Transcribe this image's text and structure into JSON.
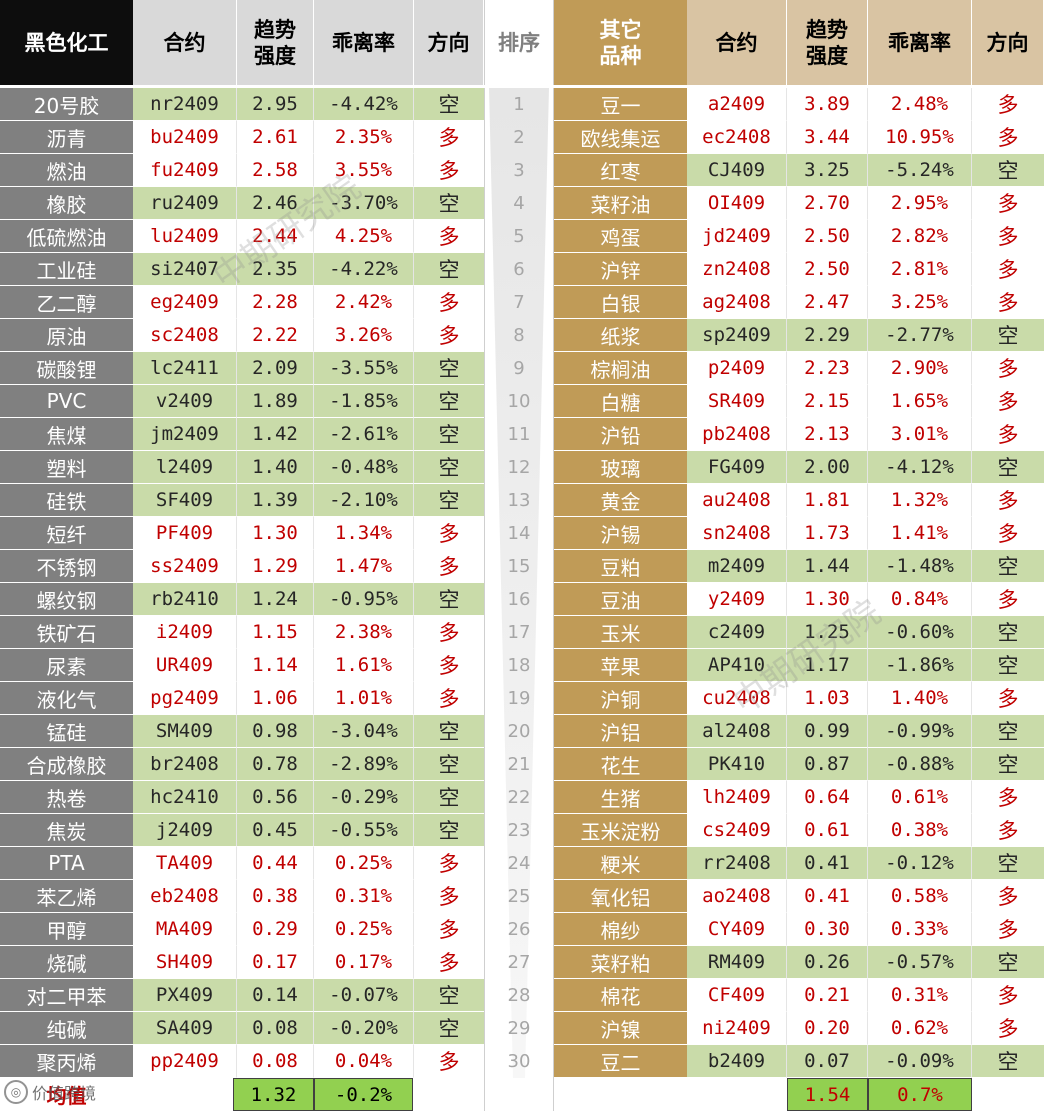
{
  "headers": {
    "left_category": "黑色化工",
    "contract": "合约",
    "trend_strength": "趋势\n强度",
    "deviation": "乖离率",
    "direction": "方向",
    "rank": "排序",
    "right_category": "其它\n品种"
  },
  "left_rows": [
    {
      "name": "20号胶",
      "code": "nr2409",
      "strength": "2.95",
      "dev": "-4.42%",
      "dir": "空"
    },
    {
      "name": "沥青",
      "code": "bu2409",
      "strength": "2.61",
      "dev": "2.35%",
      "dir": "多"
    },
    {
      "name": "燃油",
      "code": "fu2409",
      "strength": "2.58",
      "dev": "3.55%",
      "dir": "多"
    },
    {
      "name": "橡胶",
      "code": "ru2409",
      "strength": "2.46",
      "dev": "-3.70%",
      "dir": "空"
    },
    {
      "name": "低硫燃油",
      "code": "lu2409",
      "strength": "2.44",
      "dev": "4.25%",
      "dir": "多"
    },
    {
      "name": "工业硅",
      "code": "si2407",
      "strength": "2.35",
      "dev": "-4.22%",
      "dir": "空"
    },
    {
      "name": "乙二醇",
      "code": "eg2409",
      "strength": "2.28",
      "dev": "2.42%",
      "dir": "多"
    },
    {
      "name": "原油",
      "code": "sc2408",
      "strength": "2.22",
      "dev": "3.26%",
      "dir": "多"
    },
    {
      "name": "碳酸锂",
      "code": "lc2411",
      "strength": "2.09",
      "dev": "-3.55%",
      "dir": "空"
    },
    {
      "name": "PVC",
      "code": "v2409",
      "strength": "1.89",
      "dev": "-1.85%",
      "dir": "空"
    },
    {
      "name": "焦煤",
      "code": "jm2409",
      "strength": "1.42",
      "dev": "-2.61%",
      "dir": "空"
    },
    {
      "name": "塑料",
      "code": "l2409",
      "strength": "1.40",
      "dev": "-0.48%",
      "dir": "空"
    },
    {
      "name": "硅铁",
      "code": "SF409",
      "strength": "1.39",
      "dev": "-2.10%",
      "dir": "空"
    },
    {
      "name": "短纤",
      "code": "PF409",
      "strength": "1.30",
      "dev": "1.34%",
      "dir": "多"
    },
    {
      "name": "不锈钢",
      "code": "ss2409",
      "strength": "1.29",
      "dev": "1.47%",
      "dir": "多"
    },
    {
      "name": "螺纹钢",
      "code": "rb2410",
      "strength": "1.24",
      "dev": "-0.95%",
      "dir": "空"
    },
    {
      "name": "铁矿石",
      "code": "i2409",
      "strength": "1.15",
      "dev": "2.38%",
      "dir": "多"
    },
    {
      "name": "尿素",
      "code": "UR409",
      "strength": "1.14",
      "dev": "1.61%",
      "dir": "多"
    },
    {
      "name": "液化气",
      "code": "pg2409",
      "strength": "1.06",
      "dev": "1.01%",
      "dir": "多"
    },
    {
      "name": "锰硅",
      "code": "SM409",
      "strength": "0.98",
      "dev": "-3.04%",
      "dir": "空"
    },
    {
      "name": "合成橡胶",
      "code": "br2408",
      "strength": "0.78",
      "dev": "-2.89%",
      "dir": "空"
    },
    {
      "name": "热卷",
      "code": "hc2410",
      "strength": "0.56",
      "dev": "-0.29%",
      "dir": "空"
    },
    {
      "name": "焦炭",
      "code": "j2409",
      "strength": "0.45",
      "dev": "-0.55%",
      "dir": "空"
    },
    {
      "name": "PTA",
      "code": "TA409",
      "strength": "0.44",
      "dev": "0.25%",
      "dir": "多"
    },
    {
      "name": "苯乙烯",
      "code": "eb2408",
      "strength": "0.38",
      "dev": "0.31%",
      "dir": "多"
    },
    {
      "name": "甲醇",
      "code": "MA409",
      "strength": "0.29",
      "dev": "0.25%",
      "dir": "多"
    },
    {
      "name": "烧碱",
      "code": "SH409",
      "strength": "0.17",
      "dev": "0.17%",
      "dir": "多"
    },
    {
      "name": "对二甲苯",
      "code": "PX409",
      "strength": "0.14",
      "dev": "-0.07%",
      "dir": "空"
    },
    {
      "name": "纯碱",
      "code": "SA409",
      "strength": "0.08",
      "dev": "-0.20%",
      "dir": "空"
    },
    {
      "name": "聚丙烯",
      "code": "pp2409",
      "strength": "0.08",
      "dev": "0.04%",
      "dir": "多"
    }
  ],
  "ranks": [
    "1",
    "2",
    "3",
    "4",
    "5",
    "6",
    "7",
    "8",
    "9",
    "10",
    "11",
    "12",
    "13",
    "14",
    "15",
    "16",
    "17",
    "18",
    "19",
    "20",
    "21",
    "22",
    "23",
    "24",
    "25",
    "26",
    "27",
    "28",
    "29",
    "30"
  ],
  "right_rows": [
    {
      "name": "豆一",
      "code": "a2409",
      "strength": "3.89",
      "dev": "2.48%",
      "dir": "多"
    },
    {
      "name": "欧线集运",
      "code": "ec2408",
      "strength": "3.44",
      "dev": "10.95%",
      "dir": "多"
    },
    {
      "name": "红枣",
      "code": "CJ409",
      "strength": "3.25",
      "dev": "-5.24%",
      "dir": "空"
    },
    {
      "name": "菜籽油",
      "code": "OI409",
      "strength": "2.70",
      "dev": "2.95%",
      "dir": "多"
    },
    {
      "name": "鸡蛋",
      "code": "jd2409",
      "strength": "2.50",
      "dev": "2.82%",
      "dir": "多"
    },
    {
      "name": "沪锌",
      "code": "zn2408",
      "strength": "2.50",
      "dev": "2.81%",
      "dir": "多"
    },
    {
      "name": "白银",
      "code": "ag2408",
      "strength": "2.47",
      "dev": "3.25%",
      "dir": "多"
    },
    {
      "name": "纸浆",
      "code": "sp2409",
      "strength": "2.29",
      "dev": "-2.77%",
      "dir": "空"
    },
    {
      "name": "棕榈油",
      "code": "p2409",
      "strength": "2.23",
      "dev": "2.90%",
      "dir": "多"
    },
    {
      "name": "白糖",
      "code": "SR409",
      "strength": "2.15",
      "dev": "1.65%",
      "dir": "多"
    },
    {
      "name": "沪铅",
      "code": "pb2408",
      "strength": "2.13",
      "dev": "3.01%",
      "dir": "多"
    },
    {
      "name": "玻璃",
      "code": "FG409",
      "strength": "2.00",
      "dev": "-4.12%",
      "dir": "空"
    },
    {
      "name": "黄金",
      "code": "au2408",
      "strength": "1.81",
      "dev": "1.32%",
      "dir": "多"
    },
    {
      "name": "沪锡",
      "code": "sn2408",
      "strength": "1.73",
      "dev": "1.41%",
      "dir": "多"
    },
    {
      "name": "豆粕",
      "code": "m2409",
      "strength": "1.44",
      "dev": "-1.48%",
      "dir": "空"
    },
    {
      "name": "豆油",
      "code": "y2409",
      "strength": "1.30",
      "dev": "0.84%",
      "dir": "多"
    },
    {
      "name": "玉米",
      "code": "c2409",
      "strength": "1.25",
      "dev": "-0.60%",
      "dir": "空"
    },
    {
      "name": "苹果",
      "code": "AP410",
      "strength": "1.17",
      "dev": "-1.86%",
      "dir": "空"
    },
    {
      "name": "沪铜",
      "code": "cu2408",
      "strength": "1.03",
      "dev": "1.40%",
      "dir": "多"
    },
    {
      "name": "沪铝",
      "code": "al2408",
      "strength": "0.99",
      "dev": "-0.99%",
      "dir": "空"
    },
    {
      "name": "花生",
      "code": "PK410",
      "strength": "0.87",
      "dev": "-0.88%",
      "dir": "空"
    },
    {
      "name": "生猪",
      "code": "lh2409",
      "strength": "0.64",
      "dev": "0.61%",
      "dir": "多"
    },
    {
      "name": "玉米淀粉",
      "code": "cs2409",
      "strength": "0.61",
      "dev": "0.38%",
      "dir": "多"
    },
    {
      "name": "粳米",
      "code": "rr2408",
      "strength": "0.41",
      "dev": "-0.12%",
      "dir": "空"
    },
    {
      "name": "氧化铝",
      "code": "ao2408",
      "strength": "0.41",
      "dev": "0.58%",
      "dir": "多"
    },
    {
      "name": "棉纱",
      "code": "CY409",
      "strength": "0.30",
      "dev": "0.33%",
      "dir": "多"
    },
    {
      "name": "菜籽粕",
      "code": "RM409",
      "strength": "0.26",
      "dev": "-0.57%",
      "dir": "空"
    },
    {
      "name": "棉花",
      "code": "CF409",
      "strength": "0.21",
      "dev": "0.31%",
      "dir": "多"
    },
    {
      "name": "沪镍",
      "code": "ni2409",
      "strength": "0.20",
      "dev": "0.62%",
      "dir": "多"
    },
    {
      "name": "豆二",
      "code": "b2409",
      "strength": "0.07",
      "dev": "-0.09%",
      "dir": "空"
    }
  ],
  "averages": {
    "label": "均值",
    "left_strength": "1.32",
    "left_dev": "-0.2%",
    "right_strength": "1.54",
    "right_dev": "0.7%"
  },
  "watermark": "中期研究院",
  "logo_text": "价值跨境",
  "colors": {
    "long_text": "#c00000",
    "short_bg": "#c9dba9",
    "avg_bg": "#92d050",
    "left_name_bg": "#808080",
    "right_name_bg": "#c09b57"
  }
}
